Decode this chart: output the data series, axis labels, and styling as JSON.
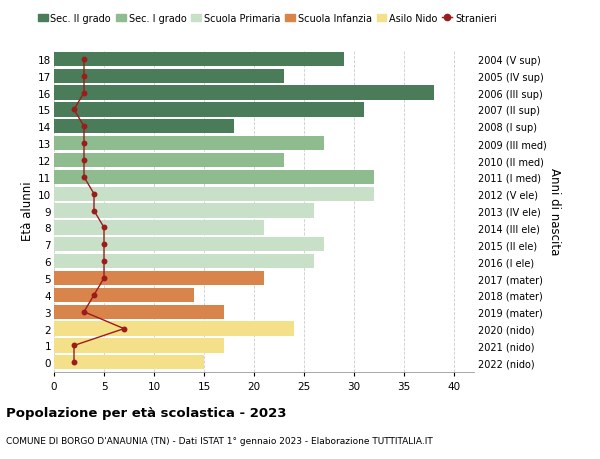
{
  "ages": [
    18,
    17,
    16,
    15,
    14,
    13,
    12,
    11,
    10,
    9,
    8,
    7,
    6,
    5,
    4,
    3,
    2,
    1,
    0
  ],
  "right_labels": [
    "2004 (V sup)",
    "2005 (IV sup)",
    "2006 (III sup)",
    "2007 (II sup)",
    "2008 (I sup)",
    "2009 (III med)",
    "2010 (II med)",
    "2011 (I med)",
    "2012 (V ele)",
    "2013 (IV ele)",
    "2014 (III ele)",
    "2015 (II ele)",
    "2016 (I ele)",
    "2017 (mater)",
    "2018 (mater)",
    "2019 (mater)",
    "2020 (nido)",
    "2021 (nido)",
    "2022 (nido)"
  ],
  "bar_values": [
    29,
    23,
    38,
    31,
    18,
    27,
    23,
    32,
    32,
    26,
    21,
    27,
    26,
    21,
    14,
    17,
    24,
    17,
    15
  ],
  "bar_colors": [
    "#4a7c59",
    "#4a7c59",
    "#4a7c59",
    "#4a7c59",
    "#4a7c59",
    "#8fbc8f",
    "#8fbc8f",
    "#8fbc8f",
    "#c8dfc8",
    "#c8dfc8",
    "#c8dfc8",
    "#c8dfc8",
    "#c8dfc8",
    "#d9844a",
    "#d9844a",
    "#d9844a",
    "#f5e08a",
    "#f5e08a",
    "#f5e08a"
  ],
  "stranieri_values": [
    3,
    3,
    3,
    2,
    3,
    3,
    3,
    3,
    4,
    4,
    5,
    5,
    5,
    5,
    4,
    3,
    7,
    2,
    2
  ],
  "sec2_color": "#4a7c59",
  "sec1_color": "#8fbc8f",
  "primaria_color": "#c8dfc8",
  "infanzia_color": "#d9844a",
  "nido_color": "#f5e08a",
  "stranieri_color": "#9b1c1c",
  "title": "Popolazione per età scolastica - 2023",
  "subtitle": "COMUNE DI BORGO D'ANAUNIA (TN) - Dati ISTAT 1° gennaio 2023 - Elaborazione TUTTITALIA.IT",
  "ylabel": "Età alunni",
  "right_ylabel": "Anni di nascita",
  "xlim": [
    0,
    42
  ],
  "background_color": "#ffffff",
  "grid_color": "#cccccc"
}
